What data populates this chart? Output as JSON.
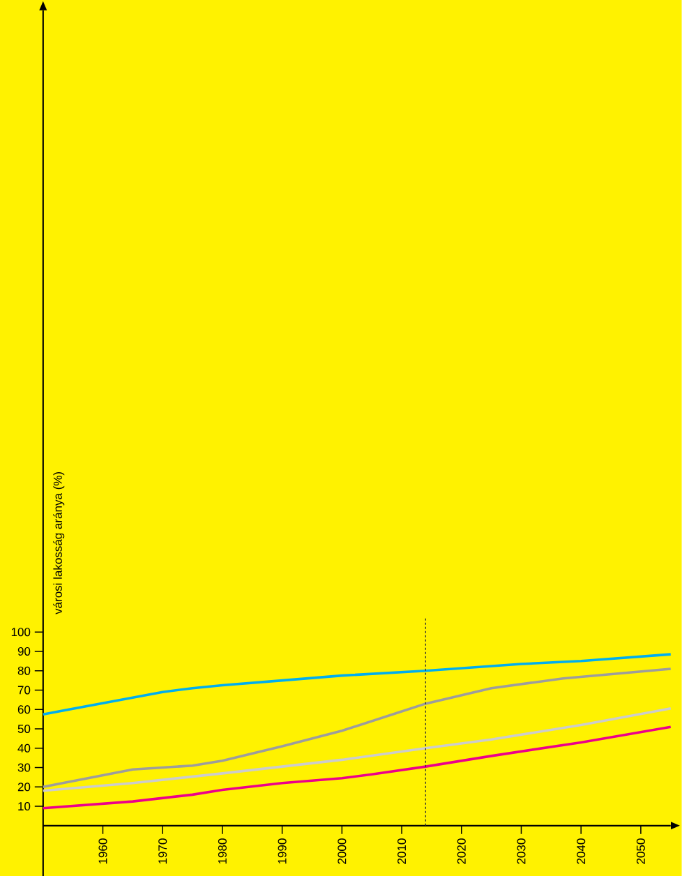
{
  "chart_data": {
    "type": "line",
    "ylabel": "városi lakosság aránya (%)",
    "xlim": [
      1950,
      2055
    ],
    "ylim": [
      -26,
      421
    ],
    "xticks": [
      1960,
      1970,
      1980,
      1990,
      2000,
      2010,
      2020,
      2030,
      2040,
      2050
    ],
    "yticks": [
      10,
      20,
      30,
      40,
      50,
      60,
      70,
      80,
      90,
      100
    ],
    "grid": false,
    "marker": "none",
    "line_style": "solid",
    "ref_lines": [
      {
        "axis": "x",
        "value": 2014,
        "line_style": "dashed",
        "color": "#333333"
      }
    ],
    "series": [
      {
        "color": "#00aeef",
        "x": [
          1950,
          1970,
          1975,
          1980,
          1990,
          2000,
          2014,
          2030,
          2040,
          2055
        ],
        "values": [
          57.5,
          69,
          71,
          72.5,
          75,
          77.5,
          80,
          83.5,
          85,
          88.5
        ]
      },
      {
        "color": "#9d9d9d",
        "x": [
          1950,
          1965,
          1975,
          1980,
          1990,
          2000,
          2014,
          2025,
          2037,
          2055
        ],
        "values": [
          20,
          29,
          31,
          33.5,
          41,
          49,
          63,
          71,
          76,
          81
        ]
      },
      {
        "color": "#cccccc",
        "x": [
          1950,
          1965,
          1980,
          1990,
          2000,
          2014,
          2025,
          2040,
          2055
        ],
        "values": [
          18,
          22,
          27,
          30.5,
          34,
          40,
          44.5,
          52,
          60.5
        ]
      },
      {
        "color": "#ec008c",
        "x": [
          1950,
          1965,
          1975,
          1980,
          1990,
          2000,
          2005,
          2014,
          2025,
          2040,
          2055
        ],
        "values": [
          9,
          12.5,
          16,
          18.5,
          22,
          24.5,
          26.5,
          30.5,
          36,
          43,
          51
        ]
      }
    ]
  }
}
